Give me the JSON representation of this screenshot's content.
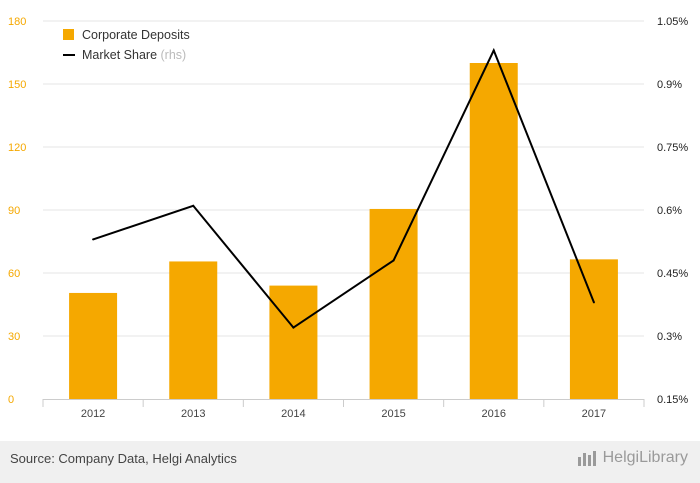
{
  "chart_data": {
    "type": "bar",
    "categories": [
      "2012",
      "2013",
      "2014",
      "2015",
      "2016",
      "2017"
    ],
    "series": [
      {
        "name": "Corporate Deposits",
        "type": "bar",
        "axis": "left",
        "color": "#f5a800",
        "values": [
          50.5,
          65.5,
          54,
          90.5,
          160,
          66.5
        ]
      },
      {
        "name": "Market Share",
        "type": "line",
        "axis": "right",
        "color": "#000000",
        "values": [
          0.53,
          0.61,
          0.32,
          0.48,
          0.98,
          0.38
        ]
      }
    ],
    "left_axis": {
      "ticks": [
        "0",
        "30",
        "60",
        "90",
        "120",
        "150",
        "180"
      ],
      "ylim": [
        0,
        180
      ]
    },
    "right_axis": {
      "ticks": [
        "0.15%",
        "0.3%",
        "0.45%",
        "0.6%",
        "0.75%",
        "0.9%",
        "1.05%"
      ],
      "ylim": [
        0.15,
        1.05
      ]
    },
    "legend": {
      "position": "top-left",
      "items": [
        "Corporate Deposits",
        "Market Share"
      ],
      "rhs_suffix": "(rhs)"
    },
    "grid": "horizontal"
  },
  "footer": {
    "source": "Source: Company Data, Helgi Analytics",
    "brand": "HelgiLibrary"
  }
}
